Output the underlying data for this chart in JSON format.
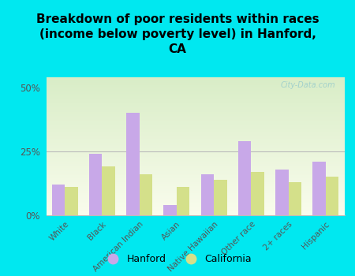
{
  "title": "Breakdown of poor residents within races\n(income below poverty level) in Hanford,\nCA",
  "categories": [
    "White",
    "Black",
    "American Indian",
    "Asian",
    "Native Hawaiian",
    "Other race",
    "2+ races",
    "Hispanic"
  ],
  "hanford": [
    12,
    24,
    40,
    4,
    16,
    29,
    18,
    21
  ],
  "california": [
    11,
    19,
    16,
    11,
    14,
    17,
    13,
    15
  ],
  "hanford_color": "#c8a8e8",
  "california_color": "#d4e08a",
  "background_outer": "#00e8f0",
  "yticks": [
    0,
    25,
    50
  ],
  "ylim": [
    0,
    54
  ],
  "legend_hanford": "Hanford",
  "legend_california": "California",
  "title_fontsize": 11,
  "watermark": "City-Data.com"
}
